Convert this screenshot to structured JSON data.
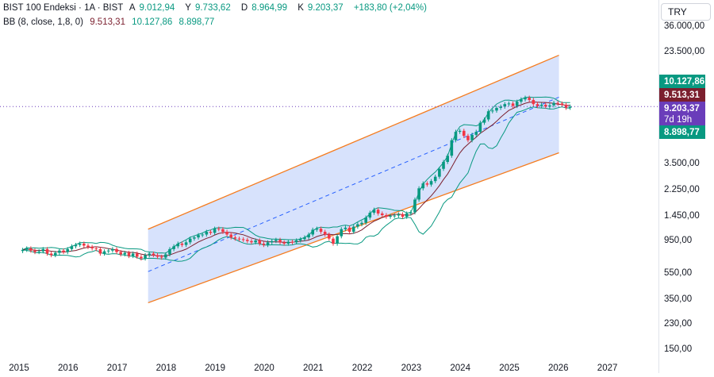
{
  "legend": {
    "symbol": "BIST 100 Endeksi · 1A · BIST",
    "o_label": "A",
    "o_value": "9.012,94",
    "h_label": "Y",
    "h_value": "9.733,62",
    "l_label": "D",
    "l_value": "8.964,99",
    "c_label": "K",
    "c_value": "9.203,37",
    "change": "+183,80 (+2,04%)",
    "bb_label": "BB (8, close, 1,8, 0)",
    "bb_basis": "9.513,31",
    "bb_upper": "10.127,86",
    "bb_lower": "8.898,77"
  },
  "currency": "TRY",
  "badges": {
    "upper": "10.127,86",
    "basis": "9.513,31",
    "price": "9.203,37",
    "countdown": "7d 19h",
    "lower": "8.898,77"
  },
  "colors": {
    "up": "#089981",
    "down": "#f23645",
    "basis": "#7b1f2e",
    "band": "#089981",
    "channel_fill": "#c9d8fb",
    "channel_edge": "#f57c1f",
    "median": "#2962ff",
    "price_badge": "#6a3dba"
  },
  "chart_data": {
    "type": "candlestick",
    "scale": "log",
    "ylim": [
      130,
      40000
    ],
    "y_ticks": [
      {
        "v": 36000,
        "label": "36.000,00"
      },
      {
        "v": 23500,
        "label": "23.500,00"
      },
      {
        "v": 3500,
        "label": "3.500,00"
      },
      {
        "v": 2250,
        "label": "2.250,00"
      },
      {
        "v": 1450,
        "label": "1.450,00"
      },
      {
        "v": 950,
        "label": "950,00"
      },
      {
        "v": 550,
        "label": "550,00"
      },
      {
        "v": 350,
        "label": "350,00"
      },
      {
        "v": 230,
        "label": "230,00"
      },
      {
        "v": 150,
        "label": "150,00"
      }
    ],
    "x_ticks": [
      "2015",
      "2016",
      "2017",
      "2018",
      "2019",
      "2020",
      "2021",
      "2022",
      "2023",
      "2024",
      "2025",
      "2026",
      "2027"
    ],
    "x_start_year": 2015,
    "closes": [
      810,
      830,
      800,
      780,
      790,
      820,
      760,
      740,
      770,
      800,
      780,
      820,
      860,
      880,
      900,
      870,
      850,
      830,
      820,
      760,
      790,
      800,
      820,
      780,
      750,
      770,
      730,
      760,
      720,
      700,
      740,
      760,
      740,
      720,
      710,
      750,
      820,
      860,
      900,
      880,
      920,
      980,
      1000,
      1040,
      1050,
      1100,
      1080,
      1160,
      1150,
      1100,
      1050,
      1000,
      980,
      970,
      960,
      940,
      920,
      950,
      900,
      880,
      920,
      940,
      960,
      920,
      900,
      930,
      920,
      950,
      970,
      1000,
      1050,
      1140,
      1160,
      1100,
      1050,
      980,
      900,
      1020,
      1150,
      1180,
      1100,
      1200,
      1250,
      1280,
      1400,
      1520,
      1600,
      1500,
      1460,
      1420,
      1440,
      1450,
      1480,
      1420,
      1500,
      1530,
      1900,
      2300,
      2500,
      2450,
      2600,
      2800,
      3200,
      3600,
      4000,
      5200,
      6000,
      6100,
      5600,
      5200,
      5700,
      6000,
      7000,
      7400,
      8500,
      8600,
      9000,
      9200,
      9600,
      9700,
      9300,
      10000,
      10400,
      10700,
      10300,
      9600,
      9300,
      9500,
      9200,
      9400,
      9800,
      9700,
      9500,
      9020,
      9203
    ],
    "channel": {
      "x_start": 2017.6,
      "x_end": 2025.98,
      "upper": [
        1150,
        22000
      ],
      "median": [
        560,
        10800
      ],
      "lower": [
        330,
        4200
      ]
    },
    "bollinger": {
      "period": 8,
      "mult": 1.8,
      "last_basis": 9513.31,
      "last_upper": 10127.86,
      "last_lower": 8898.77
    }
  }
}
